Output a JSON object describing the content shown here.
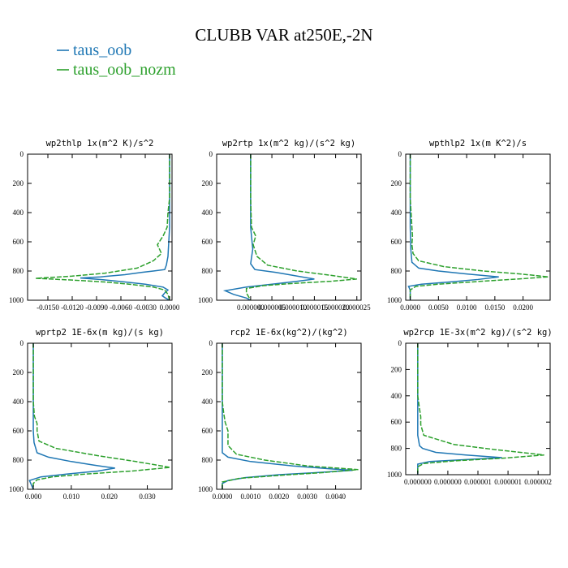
{
  "figure": {
    "title": "CLUBB VAR at250E,-2N",
    "legend": [
      {
        "label": "taus_oob",
        "color": "#1f77b4",
        "dash": "solid"
      },
      {
        "label": "taus_oob_nozm",
        "color": "#2ca02c",
        "dash": "dashed"
      }
    ]
  },
  "chart_data": [
    {
      "type": "line",
      "title": "wp2thlp  1x(m^2 K)/s^2",
      "xlim": [
        -0.0175,
        0.0003
      ],
      "ylim": [
        1000,
        0
      ],
      "xticks": [
        -0.015,
        -0.012,
        -0.009,
        -0.006,
        -0.003,
        0.0
      ],
      "xtick_labels": [
        "-0.0150",
        "-0.0120",
        "-0.0090",
        "-0.0060",
        "-0.0030",
        "0.0000"
      ],
      "yticks": [
        0,
        200,
        400,
        600,
        800,
        1000
      ],
      "ytick_labels": [
        "0",
        "200",
        "400",
        "600",
        "800",
        "1000"
      ],
      "series": [
        {
          "name": "taus_oob",
          "points": [
            [
              0,
              0
            ],
            [
              0,
              300
            ],
            [
              0,
              500
            ],
            [
              -0.0001,
              600
            ],
            [
              -0.0002,
              700
            ],
            [
              -0.0004,
              760
            ],
            [
              -0.0006,
              790
            ],
            [
              -0.002,
              800
            ],
            [
              -0.0035,
              810
            ],
            [
              -0.0055,
              825
            ],
            [
              -0.0085,
              840
            ],
            [
              -0.011,
              848
            ],
            [
              -0.0085,
              858
            ],
            [
              -0.0055,
              875
            ],
            [
              -0.003,
              890
            ],
            [
              -0.0008,
              910
            ],
            [
              -0.0002,
              930
            ],
            [
              -0.0006,
              950
            ],
            [
              -0.0009,
              970
            ],
            [
              -0.0005,
              985
            ],
            [
              0,
              1000
            ]
          ]
        },
        {
          "name": "taus_oob_nozm",
          "points": [
            [
              0,
              0
            ],
            [
              0,
              300
            ],
            [
              -0.0002,
              400
            ],
            [
              -0.0003,
              500
            ],
            [
              -0.0008,
              560
            ],
            [
              -0.0015,
              620
            ],
            [
              -0.001,
              680
            ],
            [
              -0.002,
              730
            ],
            [
              -0.004,
              780
            ],
            [
              -0.008,
              815
            ],
            [
              -0.012,
              835
            ],
            [
              -0.0165,
              850
            ],
            [
              -0.012,
              862
            ],
            [
              -0.008,
              875
            ],
            [
              -0.005,
              890
            ],
            [
              -0.002,
              910
            ],
            [
              -0.0006,
              930
            ],
            [
              -0.0002,
              960
            ],
            [
              0,
              1000
            ]
          ]
        }
      ]
    },
    {
      "type": "line",
      "title": "wp2rtp  1x(m^2 kg)/(s^2 kg)",
      "xlim": [
        -8e-06,
        2.6e-05
      ],
      "ylim": [
        1000,
        0
      ],
      "xticks": [
        0.0,
        5e-06,
        1e-05,
        1.5e-05,
        2e-05,
        2.5e-05
      ],
      "xtick_labels": [
        "0.000000",
        "0.000005",
        "0.000010",
        "0.000015",
        "0.000020",
        "0.000025"
      ],
      "yticks": [
        0,
        200,
        400,
        600,
        800,
        1000
      ],
      "ytick_labels": [
        "0",
        "200",
        "400",
        "600",
        "800",
        "1000"
      ],
      "series": [
        {
          "name": "taus_oob",
          "points": [
            [
              0,
              0
            ],
            [
              0,
              300
            ],
            [
              0,
              500
            ],
            [
              5e-07,
              650
            ],
            [
              0,
              750
            ],
            [
              1e-06,
              790
            ],
            [
              6e-06,
              810
            ],
            [
              1e-05,
              830
            ],
            [
              1.5e-05,
              855
            ],
            [
              1.1e-05,
              870
            ],
            [
              5e-06,
              890
            ],
            [
              -1e-06,
              910
            ],
            [
              -6e-06,
              935
            ],
            [
              -4e-06,
              960
            ],
            [
              -1e-06,
              985
            ],
            [
              0,
              1000
            ]
          ]
        },
        {
          "name": "taus_oob_nozm",
          "points": [
            [
              0,
              0
            ],
            [
              0,
              300
            ],
            [
              2e-07,
              500
            ],
            [
              1.2e-06,
              560
            ],
            [
              6e-07,
              620
            ],
            [
              1.5e-06,
              700
            ],
            [
              4e-06,
              760
            ],
            [
              1.1e-05,
              800
            ],
            [
              1.9e-05,
              830
            ],
            [
              2.5e-05,
              855
            ],
            [
              1.9e-05,
              870
            ],
            [
              1e-05,
              885
            ],
            [
              3e-06,
              900
            ],
            [
              -1e-06,
              920
            ],
            [
              -1e-06,
              950
            ],
            [
              0,
              1000
            ]
          ]
        }
      ]
    },
    {
      "type": "line",
      "title": "wpthlp2  1x(m K^2)/s",
      "xlim": [
        -0.0008,
        0.0248
      ],
      "ylim": [
        1000,
        0
      ],
      "xticks": [
        0.0,
        0.005,
        0.01,
        0.015,
        0.02
      ],
      "xtick_labels": [
        "0.0000",
        "0.0050",
        "0.0100",
        "0.0150",
        "0.0200"
      ],
      "yticks": [
        0,
        200,
        400,
        600,
        800,
        1000
      ],
      "ytick_labels": [
        "0",
        "200",
        "400",
        "600",
        "800",
        "1000"
      ],
      "series": [
        {
          "name": "taus_oob",
          "points": [
            [
              0,
              0
            ],
            [
              0,
              300
            ],
            [
              0,
              500
            ],
            [
              0.0001,
              650
            ],
            [
              0.0003,
              740
            ],
            [
              0.0015,
              780
            ],
            [
              0.005,
              800
            ],
            [
              0.01,
              820
            ],
            [
              0.0157,
              840
            ],
            [
              0.012,
              858
            ],
            [
              0.007,
              875
            ],
            [
              0.002,
              890
            ],
            [
              -0.0003,
              905
            ],
            [
              0,
              930
            ],
            [
              0,
              1000
            ]
          ]
        },
        {
          "name": "taus_oob_nozm",
          "points": [
            [
              0,
              0
            ],
            [
              0,
              300
            ],
            [
              0.0003,
              500
            ],
            [
              0.0004,
              560
            ],
            [
              0.0003,
              620
            ],
            [
              0.0005,
              680
            ],
            [
              0.0015,
              730
            ],
            [
              0.006,
              770
            ],
            [
              0.013,
              800
            ],
            [
              0.0195,
              820
            ],
            [
              0.0245,
              840
            ],
            [
              0.019,
              855
            ],
            [
              0.012,
              872
            ],
            [
              0.005,
              890
            ],
            [
              0.001,
              905
            ],
            [
              0,
              930
            ],
            [
              0,
              1000
            ]
          ]
        }
      ]
    },
    {
      "type": "line",
      "title": "wprtp2  1E-6x(m kg)/(s kg)",
      "xlim": [
        -0.0015,
        0.0365
      ],
      "ylim": [
        1000,
        0
      ],
      "xticks": [
        0.0,
        0.01,
        0.02,
        0.03
      ],
      "xtick_labels": [
        "0.000",
        "0.010",
        "0.020",
        "0.030"
      ],
      "yticks": [
        0,
        200,
        400,
        600,
        800,
        1000
      ],
      "ytick_labels": [
        "0",
        "200",
        "400",
        "600",
        "800",
        "1000"
      ],
      "series": [
        {
          "name": "taus_oob",
          "points": [
            [
              0,
              0
            ],
            [
              0,
              400
            ],
            [
              0,
              600
            ],
            [
              0.0002,
              680
            ],
            [
              0.001,
              750
            ],
            [
              0.004,
              780
            ],
            [
              0.01,
              810
            ],
            [
              0.016,
              835
            ],
            [
              0.0215,
              855
            ],
            [
              0.017,
              875
            ],
            [
              0.009,
              895
            ],
            [
              0.002,
              915
            ],
            [
              -0.001,
              940
            ],
            [
              -0.0005,
              970
            ],
            [
              0,
              1000
            ]
          ]
        },
        {
          "name": "taus_oob_nozm",
          "points": [
            [
              0,
              0
            ],
            [
              0,
              400
            ],
            [
              0.0003,
              500
            ],
            [
              0.001,
              550
            ],
            [
              0.001,
              600
            ],
            [
              0.0015,
              670
            ],
            [
              0.006,
              720
            ],
            [
              0.017,
              770
            ],
            [
              0.027,
              810
            ],
            [
              0.036,
              850
            ],
            [
              0.026,
              875
            ],
            [
              0.014,
              895
            ],
            [
              0.005,
              915
            ],
            [
              0.001,
              935
            ],
            [
              0,
              960
            ],
            [
              0,
              1000
            ]
          ]
        }
      ]
    },
    {
      "type": "line",
      "title": "rcp2  1E-6x(kg^2)/(kg^2)",
      "xlim": [
        -0.0002,
        0.0049
      ],
      "ylim": [
        1000,
        0
      ],
      "xticks": [
        0.0,
        0.001,
        0.002,
        0.003,
        0.004
      ],
      "xtick_labels": [
        "0.0000",
        "0.0010",
        "0.0020",
        "0.0030",
        "0.0040"
      ],
      "yticks": [
        0,
        200,
        400,
        600,
        800,
        1000
      ],
      "ytick_labels": [
        "0",
        "200",
        "400",
        "600",
        "800",
        "1000"
      ],
      "series": [
        {
          "name": "taus_oob",
          "points": [
            [
              0,
              0
            ],
            [
              0,
              600
            ],
            [
              0,
              750
            ],
            [
              0.0002,
              780
            ],
            [
              0.001,
              810
            ],
            [
              0.0025,
              840
            ],
            [
              0.0038,
              860
            ],
            [
              0.0046,
              870
            ],
            [
              0.0034,
              885
            ],
            [
              0.002,
              900
            ],
            [
              0.0008,
              920
            ],
            [
              0.0002,
              940
            ],
            [
              0,
              960
            ],
            [
              0,
              1000
            ]
          ]
        },
        {
          "name": "taus_oob_nozm",
          "points": [
            [
              0,
              0
            ],
            [
              0,
              400
            ],
            [
              5e-05,
              480
            ],
            [
              0.0001,
              540
            ],
            [
              0.0002,
              600
            ],
            [
              0.0002,
              700
            ],
            [
              0.0005,
              760
            ],
            [
              0.0015,
              800
            ],
            [
              0.003,
              840
            ],
            [
              0.0048,
              865
            ],
            [
              0.0036,
              885
            ],
            [
              0.002,
              905
            ],
            [
              0.0006,
              925
            ],
            [
              0,
              950
            ],
            [
              0,
              1000
            ]
          ]
        }
      ]
    },
    {
      "type": "line",
      "title": "wp2rcp  1E-3x(m^2 kg)/(s^2 kg)",
      "xlim": [
        -2e-07,
        2.2e-06
      ],
      "ylim": [
        1000,
        0
      ],
      "xticks": [
        0.0,
        5e-07,
        1e-06,
        1.5e-06,
        2e-06
      ],
      "xtick_labels": [
        "0.000000",
        "0.000000",
        "0.000001",
        "0.000001",
        "0.000002"
      ],
      "yticks": [
        0,
        200,
        400,
        600,
        800,
        1000
      ],
      "ytick_labels": [
        "0",
        "200",
        "400",
        "600",
        "800",
        "1000"
      ],
      "series": [
        {
          "name": "taus_oob",
          "points": [
            [
              0,
              0
            ],
            [
              0,
              400
            ],
            [
              0,
              700
            ],
            [
              3e-08,
              780
            ],
            [
              8e-08,
              800
            ],
            [
              3e-07,
              830
            ],
            [
              8e-07,
              850
            ],
            [
              1.4e-06,
              870
            ],
            [
              8e-07,
              885
            ],
            [
              2e-07,
              900
            ],
            [
              0,
              920
            ],
            [
              0,
              1000
            ]
          ]
        },
        {
          "name": "taus_oob_nozm",
          "points": [
            [
              0,
              0
            ],
            [
              0,
              400
            ],
            [
              3e-08,
              500
            ],
            [
              5e-08,
              560
            ],
            [
              5e-08,
              620
            ],
            [
              1e-07,
              700
            ],
            [
              6e-07,
              770
            ],
            [
              1.3e-06,
              810
            ],
            [
              2.1e-06,
              850
            ],
            [
              1.4e-06,
              875
            ],
            [
              6e-07,
              895
            ],
            [
              1e-07,
              915
            ],
            [
              0,
              940
            ],
            [
              0,
              1000
            ]
          ]
        }
      ]
    }
  ]
}
